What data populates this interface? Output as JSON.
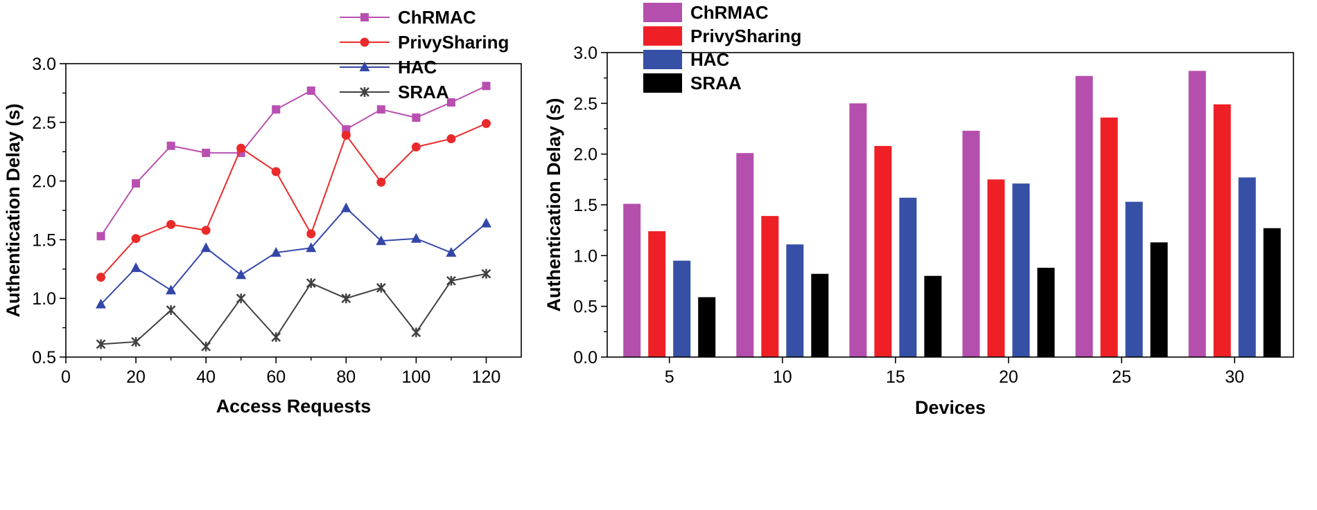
{
  "chart_data": [
    {
      "type": "line",
      "title": "",
      "xlabel": "Access Requests",
      "ylabel": "Authentication Delay (s)",
      "xlim": [
        0,
        130
      ],
      "ylim": [
        0.5,
        3.0
      ],
      "xticks": [
        "0",
        "20",
        "40",
        "60",
        "80",
        "100",
        "120"
      ],
      "yticks": [
        "0.5",
        "1.0",
        "1.5",
        "2.0",
        "2.5",
        "3.0"
      ],
      "x": [
        10,
        20,
        30,
        40,
        50,
        60,
        70,
        80,
        90,
        100,
        110,
        120
      ],
      "grid": false,
      "legend_position": "top-center",
      "series": [
        {
          "name": "ChRMAC",
          "color": "#b94fb0",
          "marker": "square",
          "values": [
            1.53,
            1.98,
            2.3,
            2.24,
            2.24,
            2.61,
            2.77,
            2.44,
            2.61,
            2.54,
            2.67,
            2.81
          ]
        },
        {
          "name": "PrivySharing",
          "color": "#ea2a2a",
          "marker": "circle",
          "values": [
            1.18,
            1.51,
            1.63,
            1.58,
            2.28,
            2.08,
            1.55,
            2.39,
            1.99,
            2.29,
            2.36,
            2.49
          ]
        },
        {
          "name": "HAC",
          "color": "#3447a8",
          "marker": "triangle",
          "values": [
            0.95,
            1.26,
            1.07,
            1.43,
            1.2,
            1.39,
            1.43,
            1.77,
            1.49,
            1.51,
            1.39,
            1.64
          ]
        },
        {
          "name": "SRAA",
          "color": "#404040",
          "marker": "star",
          "values": [
            0.61,
            0.63,
            0.9,
            0.59,
            1.0,
            0.67,
            1.13,
            1.0,
            1.09,
            0.71,
            1.15,
            1.21
          ]
        }
      ]
    },
    {
      "type": "bar",
      "title": "",
      "xlabel": "Devices",
      "ylabel": "Authentication Delay (s)",
      "ylim": [
        0.0,
        3.0
      ],
      "yticks": [
        "0.0",
        "0.5",
        "1.0",
        "1.5",
        "2.0",
        "2.5",
        "3.0"
      ],
      "categories": [
        "5",
        "10",
        "15",
        "20",
        "25",
        "30"
      ],
      "grid": false,
      "legend_position": "top-left",
      "series": [
        {
          "name": "ChRMAC",
          "color": "#b54fae",
          "values": [
            1.51,
            2.01,
            2.5,
            2.23,
            2.77,
            2.82
          ]
        },
        {
          "name": "PrivySharing",
          "color": "#ee2026",
          "values": [
            1.24,
            1.39,
            2.08,
            1.75,
            2.36,
            2.49
          ]
        },
        {
          "name": "HAC",
          "color": "#3650a6",
          "values": [
            0.95,
            1.11,
            1.57,
            1.71,
            1.53,
            1.77
          ]
        },
        {
          "name": "SRAA",
          "color": "#000000",
          "values": [
            0.59,
            0.82,
            0.8,
            0.88,
            1.13,
            1.27
          ]
        }
      ]
    }
  ]
}
